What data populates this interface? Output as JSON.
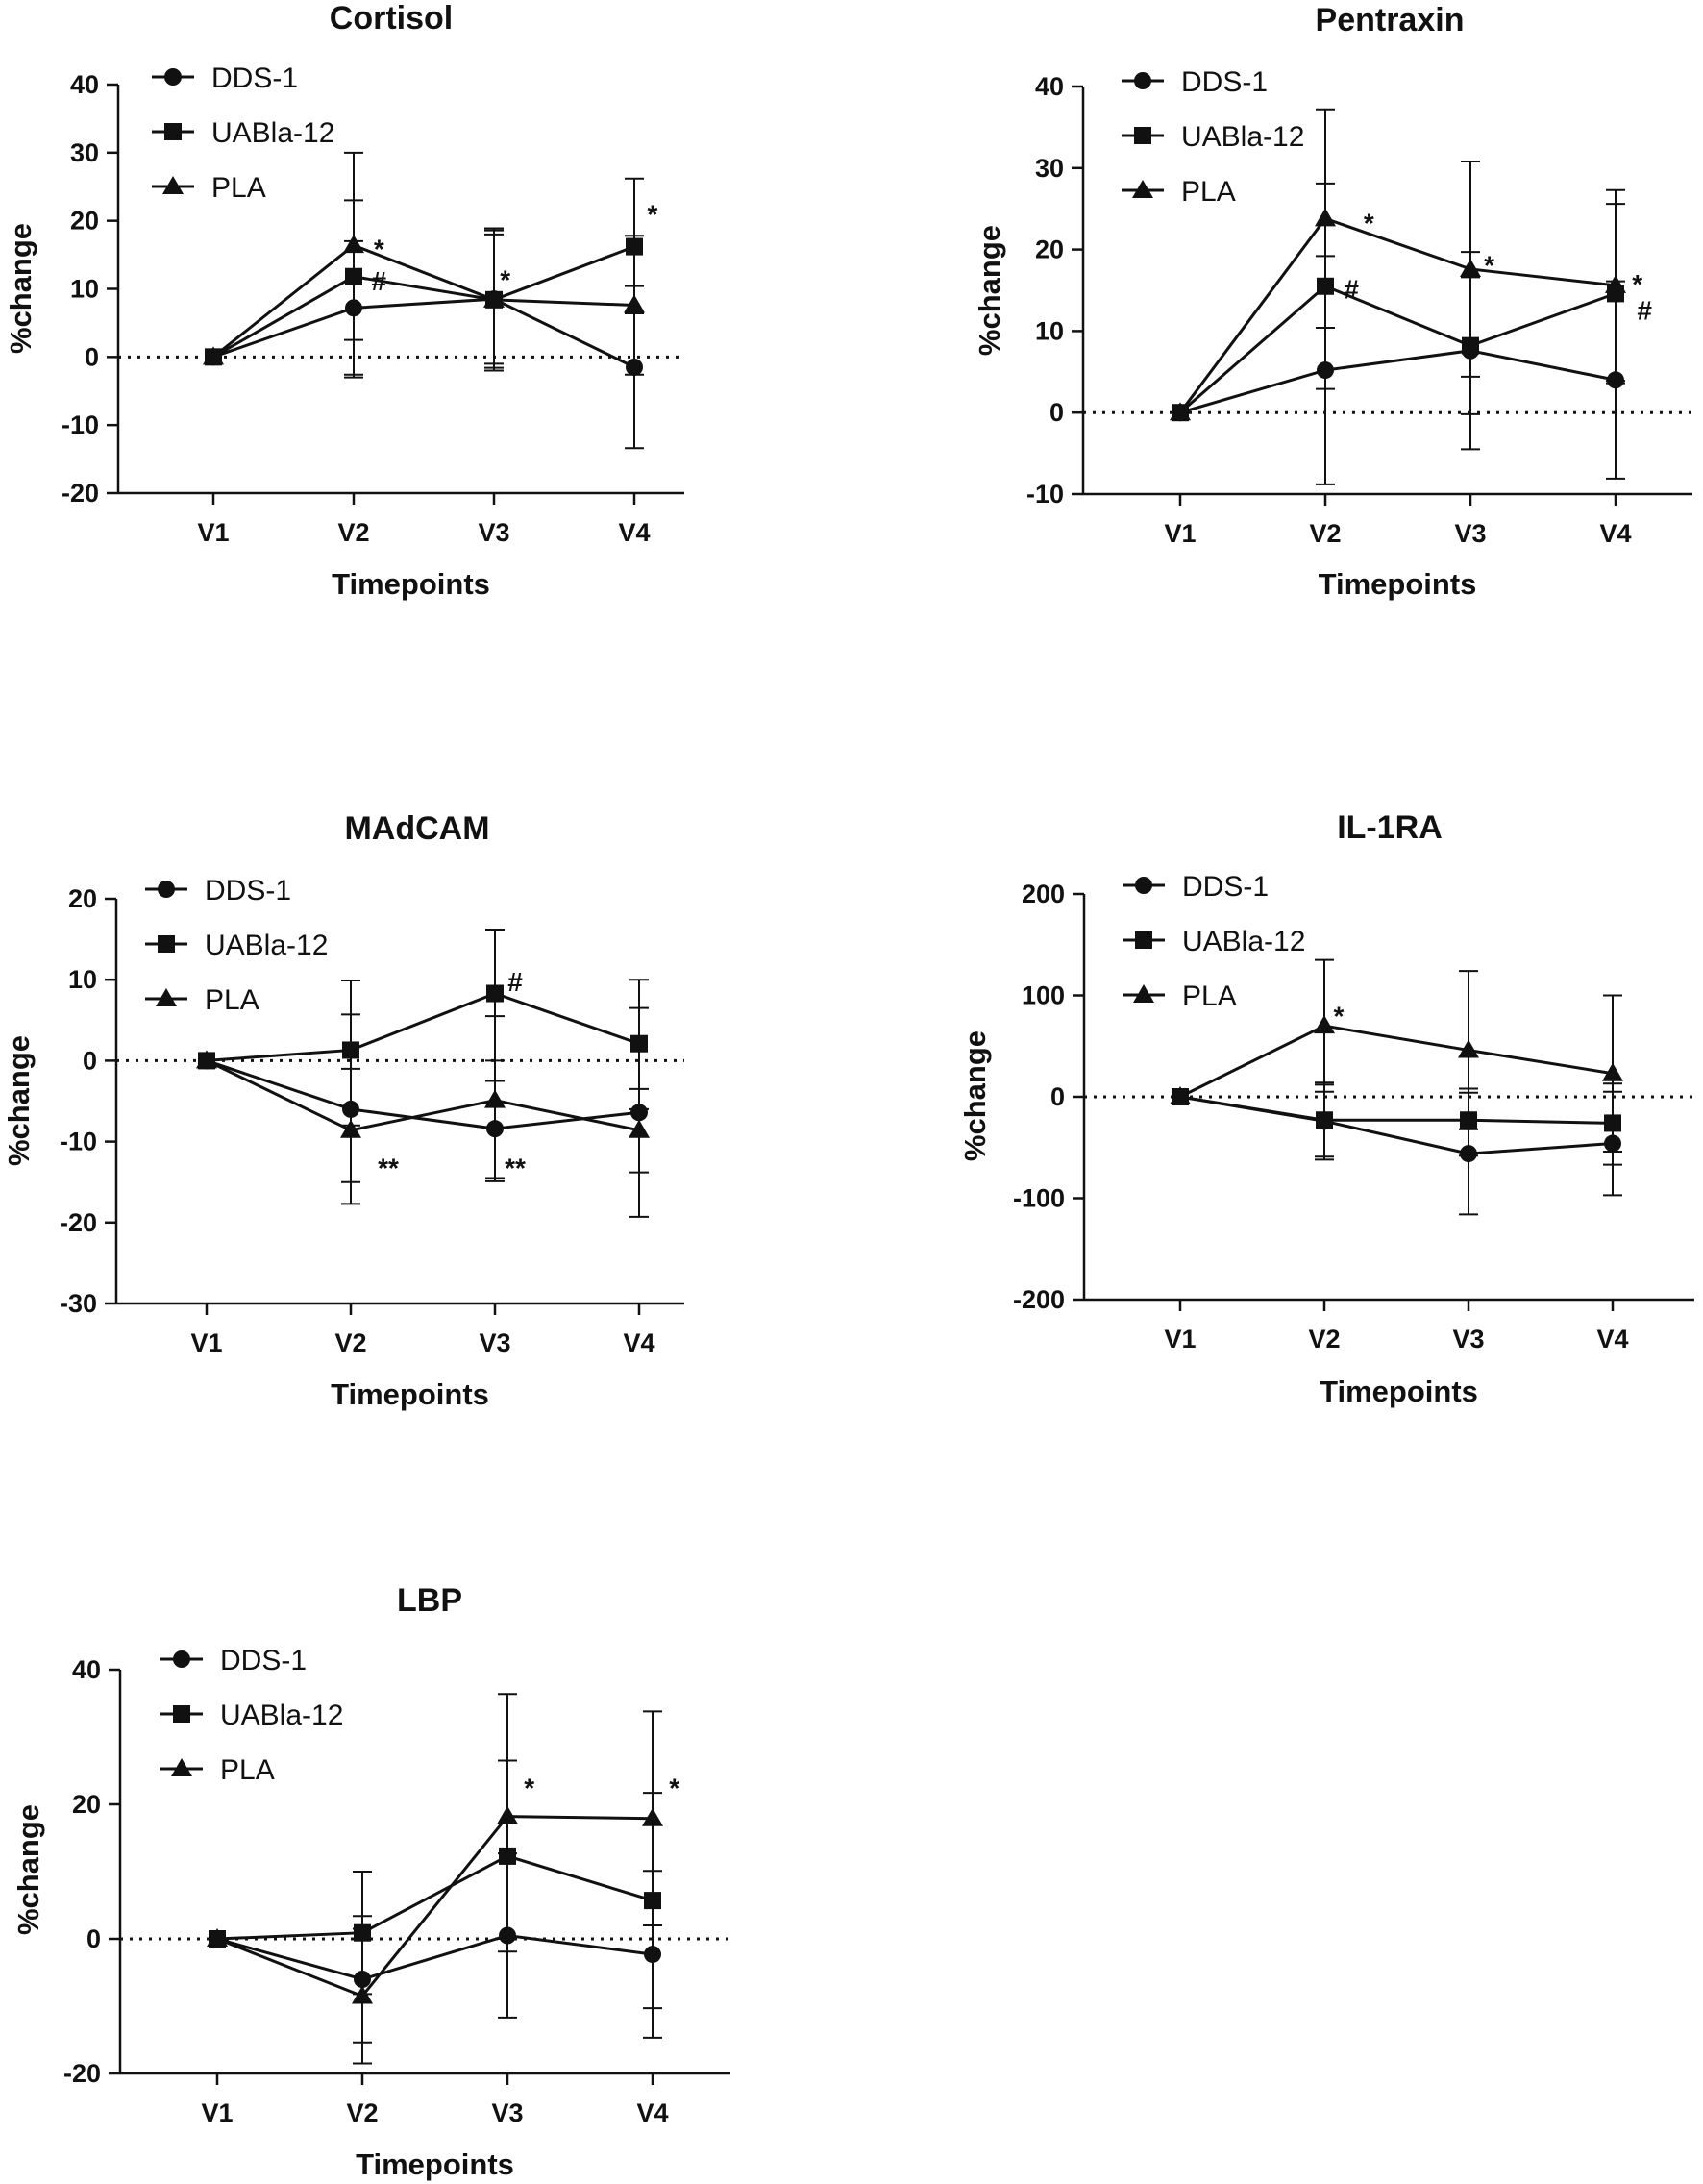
{
  "figure": {
    "marker_color": "#111111",
    "background_color": "#ffffff"
  },
  "chart_data": [
    {
      "type": "line",
      "title": "Cortisol",
      "xlabel": "Timepoints",
      "ylabel": "%change",
      "categories": [
        "V1",
        "V2",
        "V3",
        "V4"
      ],
      "ylim": [
        -20,
        40
      ],
      "yticks": [
        -20,
        -10,
        0,
        10,
        20,
        30,
        40
      ],
      "reference_line": 0,
      "legend": "top-left",
      "series": [
        {
          "name": "DDS-1",
          "marker": "circle",
          "values": [
            0,
            7.2,
            8.5,
            -1.5
          ],
          "err_low": [
            0,
            -2.6,
            -1.6,
            -13.4
          ],
          "err_high": [
            0,
            17.0,
            18.6,
            10.4
          ]
        },
        {
          "name": "UABla-12",
          "marker": "square",
          "values": [
            0,
            11.8,
            8.4,
            16.2
          ],
          "err_low": [
            0,
            2.5,
            -1.0,
            6.4
          ],
          "err_high": [
            0,
            23.0,
            18.0,
            26.2
          ]
        },
        {
          "name": "PLA",
          "marker": "triangle",
          "values": [
            0,
            16.4,
            8.4,
            7.6
          ],
          "err_low": [
            0,
            -3.0,
            -2.0,
            -2.6
          ],
          "err_high": [
            0,
            30.0,
            18.9,
            17.8
          ]
        }
      ],
      "annotations": [
        {
          "text": "*",
          "x": "V2",
          "y": 15.9,
          "dx": 0.18
        },
        {
          "text": "#",
          "x": "V2",
          "y": 11.2,
          "dx": 0.18
        },
        {
          "text": "*",
          "x": "V3",
          "y": 11.4,
          "dx": 0.08
        },
        {
          "text": "*",
          "x": "V4",
          "y": 21.0,
          "dx": 0.13
        }
      ]
    },
    {
      "type": "line",
      "title": "Pentraxin",
      "xlabel": "Timepoints",
      "ylabel": "%change",
      "categories": [
        "V1",
        "V2",
        "V3",
        "V4"
      ],
      "ylim": [
        -10,
        40
      ],
      "yticks": [
        -10,
        0,
        10,
        20,
        30,
        40
      ],
      "reference_line": 0,
      "legend": "top-left",
      "series": [
        {
          "name": "DDS-1",
          "marker": "circle",
          "values": [
            0,
            5.2,
            7.6,
            4.0
          ],
          "err_low": [
            0,
            -8.8,
            -4.5,
            -8.1
          ],
          "err_high": [
            0,
            19.2,
            19.7,
            16.1
          ]
        },
        {
          "name": "UABla-12",
          "marker": "square",
          "values": [
            0,
            15.5,
            8.2,
            14.6
          ],
          "err_low": [
            0,
            2.9,
            -0.2,
            3.6
          ],
          "err_high": [
            0,
            28.1,
            16.6,
            25.6
          ]
        },
        {
          "name": "PLA",
          "marker": "triangle",
          "values": [
            0,
            23.8,
            17.6,
            15.6
          ],
          "err_low": [
            0,
            10.4,
            4.4,
            3.9
          ],
          "err_high": [
            0,
            37.2,
            30.8,
            27.3
          ]
        }
      ],
      "annotations": [
        {
          "text": "*",
          "x": "V2",
          "y": 23.3,
          "dx": 0.3
        },
        {
          "text": "#",
          "x": "V2",
          "y": 15.2,
          "dx": 0.18
        },
        {
          "text": "*",
          "x": "V3",
          "y": 18.1,
          "dx": 0.13
        },
        {
          "text": "*",
          "x": "V4",
          "y": 15.8,
          "dx": 0.15
        },
        {
          "text": "#",
          "x": "V4",
          "y": 12.6,
          "dx": 0.2
        }
      ]
    },
    {
      "type": "line",
      "title": "MAdCAM",
      "xlabel": "Timepoints",
      "ylabel": "%change",
      "categories": [
        "V1",
        "V2",
        "V3",
        "V4"
      ],
      "ylim": [
        -30,
        20
      ],
      "yticks": [
        -30,
        -20,
        -10,
        0,
        10,
        20
      ],
      "reference_line": 0,
      "legend": "top-left",
      "series": [
        {
          "name": "DDS-1",
          "marker": "circle",
          "values": [
            0,
            -6.0,
            -8.4,
            -6.4
          ],
          "err_low": [
            0,
            -17.7,
            -14.9,
            -19.3
          ],
          "err_high": [
            0,
            5.7,
            5.5,
            6.5
          ]
        },
        {
          "name": "UABla-12",
          "marker": "square",
          "values": [
            0,
            1.3,
            8.3,
            2.1
          ],
          "err_low": [
            0,
            -8.0,
            0.0,
            -6.0
          ],
          "err_high": [
            0,
            9.9,
            16.2,
            10.0
          ]
        },
        {
          "name": "PLA",
          "marker": "triangle",
          "values": [
            0,
            -8.6,
            -4.9,
            -8.6
          ],
          "err_low": [
            0,
            -15.0,
            -14.5,
            -13.8
          ],
          "err_high": [
            0,
            -1.0,
            -2.5,
            -3.5
          ]
        }
      ],
      "annotations": [
        {
          "text": "**",
          "x": "V2",
          "y": -13.2,
          "dx": 0.26
        },
        {
          "text": "**",
          "x": "V3",
          "y": -13.2,
          "dx": 0.14
        },
        {
          "text": "#",
          "x": "V3",
          "y": 9.8,
          "dx": 0.14
        }
      ]
    },
    {
      "type": "line",
      "title": "IL-1RA",
      "xlabel": "Timepoints",
      "ylabel": "%change",
      "categories": [
        "V1",
        "V2",
        "V3",
        "V4"
      ],
      "ylim": [
        -200,
        200
      ],
      "yticks": [
        -200,
        -100,
        0,
        100,
        200
      ],
      "reference_line": 0,
      "legend": "top-left",
      "series": [
        {
          "name": "DDS-1",
          "marker": "circle",
          "values": [
            0,
            -24,
            -56,
            -46
          ],
          "err_low": [
            0,
            -62,
            -116,
            -97
          ],
          "err_high": [
            0,
            14,
            4,
            5
          ]
        },
        {
          "name": "UABla-12",
          "marker": "square",
          "values": [
            0,
            -23,
            -23,
            -26
          ],
          "err_low": [
            0,
            -59,
            -58,
            -67
          ],
          "err_high": [
            0,
            12,
            8,
            13
          ]
        },
        {
          "name": "PLA",
          "marker": "triangle",
          "values": [
            0,
            70,
            46,
            23
          ],
          "err_low": [
            0,
            5,
            -32,
            -54
          ],
          "err_high": [
            0,
            135,
            124,
            100
          ]
        }
      ],
      "annotations": [
        {
          "text": "*",
          "x": "V2",
          "y": 80,
          "dx": 0.1
        }
      ]
    },
    {
      "type": "line",
      "title": "LBP",
      "xlabel": "Timepoints",
      "ylabel": "%change",
      "categories": [
        "V1",
        "V2",
        "V3",
        "V4"
      ],
      "ylim": [
        -20,
        40
      ],
      "yticks": [
        -20,
        0,
        20,
        40
      ],
      "reference_line": 0,
      "legend": "top-left",
      "series": [
        {
          "name": "DDS-1",
          "marker": "circle",
          "values": [
            0,
            -6.0,
            0.5,
            -2.3
          ],
          "err_low": [
            0,
            -15.4,
            -11.7,
            -14.7
          ],
          "err_high": [
            0,
            3.4,
            12.7,
            10.1
          ]
        },
        {
          "name": "UABla-12",
          "marker": "square",
          "values": [
            0,
            0.9,
            12.3,
            5.7
          ],
          "err_low": [
            0,
            -8.2,
            -1.9,
            -10.3
          ],
          "err_high": [
            0,
            10.0,
            26.5,
            21.7
          ]
        },
        {
          "name": "PLA",
          "marker": "triangle",
          "values": [
            0,
            -8.5,
            18.2,
            17.9
          ],
          "err_low": [
            0,
            -18.5,
            0.0,
            2.0
          ],
          "err_high": [
            0,
            1.5,
            36.4,
            33.8
          ]
        }
      ],
      "annotations": [
        {
          "text": "*",
          "x": "V3",
          "y": 22.5,
          "dx": 0.15
        },
        {
          "text": "*",
          "x": "V4",
          "y": 22.5,
          "dx": 0.15
        }
      ]
    }
  ]
}
